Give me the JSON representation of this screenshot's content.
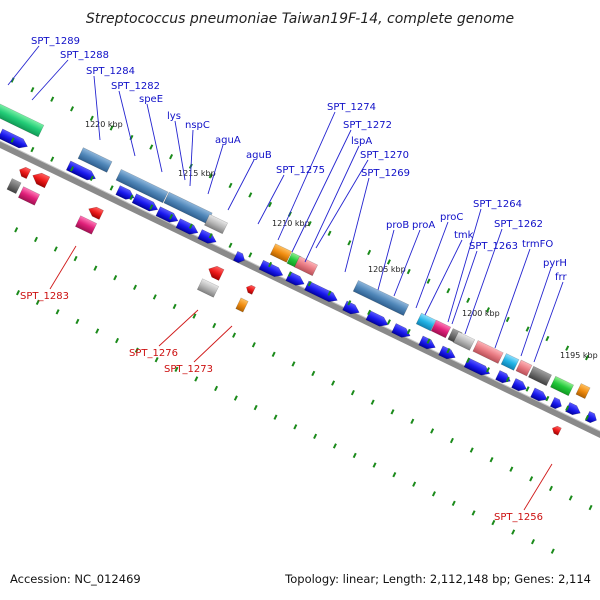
{
  "title": "Streptococcus pneumoniae Taiwan19F-14, complete genome",
  "footer": {
    "accession": "Accession: NC_012469",
    "summary": "Topology: linear; Length: 2,112,148 bp; Genes: 2,114"
  },
  "scale_labels": [
    "1220 kbp",
    "1215 kbp",
    "1210 kbp",
    "1205 kbp",
    "1200 kbp",
    "1195 kbp"
  ],
  "gene_labels": {
    "forward": [
      "SPT_1289",
      "SPT_1288",
      "SPT_1284",
      "SPT_1282",
      "speE",
      "lys",
      "nspC",
      "aguA",
      "aguB",
      "SPT_1275",
      "SPT_1274",
      "SPT_1272",
      "lspA",
      "SPT_1270",
      "SPT_1269",
      "proB",
      "proA",
      "proC",
      "tmk",
      "SPT_1264",
      "SPT_1263",
      "SPT_1262",
      "trmFO",
      "pyrH",
      "frr"
    ],
    "reverse": [
      "SPT_1283",
      "SPT_1276",
      "SPT_1273",
      "SPT_1256"
    ]
  },
  "colors": {
    "forward_label": "#1010c8",
    "reverse_label": "#cc1010",
    "cds_arrow": "#1a1aee",
    "steelblue_feature": "#4f86b8",
    "green_feature": "#22cc55",
    "magenta_feature": "#e0207a",
    "salmon_feature": "#e87a82",
    "cyan_feature": "#22b4e6",
    "orange_feature": "#f08c10",
    "gray_feature": "#b8b8b8",
    "backbone": "#888888",
    "scale_tick": "#1a8a1a"
  }
}
